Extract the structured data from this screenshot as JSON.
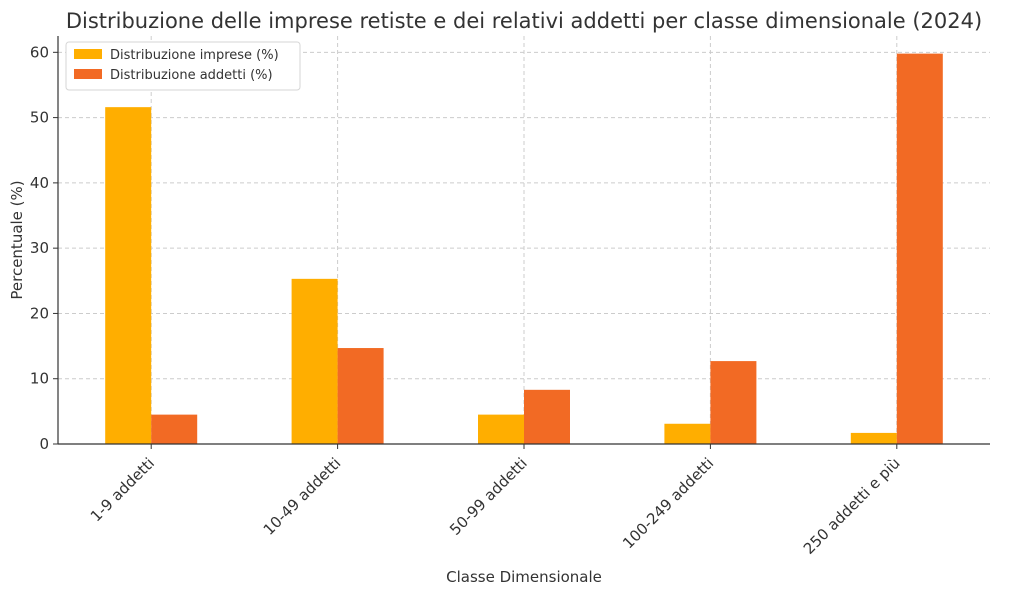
{
  "chart_data": {
    "type": "bar",
    "title": "Distribuzione delle imprese retiste e dei relativi addetti per classe dimensionale (2024)",
    "xlabel": "Classe Dimensionale",
    "ylabel": "Percentuale (%)",
    "categories": [
      "1-9 addetti",
      "10-49 addetti",
      "50-99 addetti",
      "100-249 addetti",
      "250 addetti e più"
    ],
    "series": [
      {
        "name": "Distribuzione imprese (%)",
        "color": "#FFAE00",
        "values": [
          51.6,
          25.3,
          4.5,
          3.1,
          1.7
        ]
      },
      {
        "name": "Distribuzione addetti (%)",
        "color": "#F26A24",
        "values": [
          4.5,
          14.7,
          8.3,
          12.7,
          59.8
        ]
      }
    ],
    "ylim": [
      0,
      62.5
    ],
    "yticks": [
      0,
      10,
      20,
      30,
      40,
      50,
      60
    ],
    "grid": true,
    "legend_position": "top-left"
  }
}
